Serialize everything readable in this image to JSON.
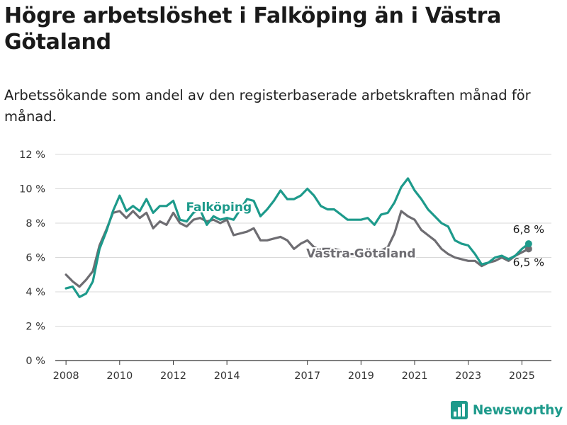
{
  "header": {
    "title": "Högre arbetslöshet i Falköping än i Västra Götaland",
    "subtitle": "Arbetssökande som andel av den registerbaserade arbetskraften månad för månad."
  },
  "brand": {
    "name": "Newsworthy",
    "icon": "bar-chart-logo-icon",
    "color": "#1d9a8b"
  },
  "chart_data": {
    "type": "line",
    "title": "Högre arbetslöshet i Falköping än i Västra Götaland",
    "subtitle": "Arbetssökande som andel av den registerbaserade arbetskraften månad för månad.",
    "xlabel": "",
    "ylabel": "",
    "xlim": [
      2007.6,
      2026.1
    ],
    "ylim": [
      0,
      12
    ],
    "yticks": [
      0,
      2,
      4,
      6,
      8,
      10,
      12
    ],
    "ytick_labels": [
      "0 %",
      "2 %",
      "4 %",
      "6 %",
      "8 %",
      "10 %",
      "12 %"
    ],
    "xticks": [
      2008,
      2010,
      2012,
      2014,
      2017,
      2019,
      2021,
      2023,
      2025
    ],
    "xtick_labels": [
      "2008",
      "2010",
      "2012",
      "2014",
      "2017",
      "2019",
      "2021",
      "2023",
      "2025"
    ],
    "grid": true,
    "legend": "inline labels",
    "series": [
      {
        "name": "Falköping",
        "color": "#1d9a8b",
        "end_label": "6,8 %",
        "x": [
          2008.0,
          2008.25,
          2008.5,
          2008.75,
          2009.0,
          2009.25,
          2009.5,
          2009.75,
          2010.0,
          2010.25,
          2010.5,
          2010.75,
          2011.0,
          2011.25,
          2011.5,
          2011.75,
          2012.0,
          2012.25,
          2012.5,
          2012.75,
          2013.0,
          2013.25,
          2013.5,
          2013.75,
          2014.0,
          2014.25,
          2014.5,
          2014.75,
          2015.0,
          2015.25,
          2015.5,
          2015.75,
          2016.0,
          2016.25,
          2016.5,
          2016.75,
          2017.0,
          2017.25,
          2017.5,
          2017.75,
          2018.0,
          2018.25,
          2018.5,
          2018.75,
          2019.0,
          2019.25,
          2019.5,
          2019.75,
          2020.0,
          2020.25,
          2020.5,
          2020.75,
          2021.0,
          2021.25,
          2021.5,
          2021.75,
          2022.0,
          2022.25,
          2022.5,
          2022.75,
          2023.0,
          2023.25,
          2023.5,
          2023.75,
          2024.0,
          2024.25,
          2024.5,
          2024.75,
          2025.0,
          2025.25
        ],
        "y": [
          4.2,
          4.3,
          3.7,
          3.9,
          4.6,
          6.5,
          7.5,
          8.7,
          9.6,
          8.7,
          9.0,
          8.7,
          9.4,
          8.6,
          9.0,
          9.0,
          9.3,
          8.2,
          8.1,
          8.6,
          8.8,
          7.9,
          8.4,
          8.2,
          8.3,
          8.2,
          8.8,
          9.4,
          9.3,
          8.4,
          8.8,
          9.3,
          9.9,
          9.4,
          9.4,
          9.6,
          10.0,
          9.6,
          9.0,
          8.8,
          8.8,
          8.5,
          8.2,
          8.2,
          8.2,
          8.3,
          7.9,
          8.5,
          8.6,
          9.2,
          10.1,
          10.6,
          9.9,
          9.4,
          8.8,
          8.4,
          8.0,
          7.8,
          7.0,
          6.8,
          6.7,
          6.2,
          5.6,
          5.7,
          6.0,
          6.1,
          5.9,
          6.1,
          6.5,
          6.8
        ]
      },
      {
        "name": "Västra Götaland",
        "color": "#6e6d72",
        "end_label": "6,5 %",
        "x": [
          2008.0,
          2008.25,
          2008.5,
          2008.75,
          2009.0,
          2009.25,
          2009.5,
          2009.75,
          2010.0,
          2010.25,
          2010.5,
          2010.75,
          2011.0,
          2011.25,
          2011.5,
          2011.75,
          2012.0,
          2012.25,
          2012.5,
          2012.75,
          2013.0,
          2013.25,
          2013.5,
          2013.75,
          2014.0,
          2014.25,
          2014.5,
          2014.75,
          2015.0,
          2015.25,
          2015.5,
          2015.75,
          2016.0,
          2016.25,
          2016.5,
          2016.75,
          2017.0,
          2017.25,
          2017.5,
          2017.75,
          2018.0,
          2018.25,
          2018.5,
          2018.75,
          2019.0,
          2019.25,
          2019.5,
          2019.75,
          2020.0,
          2020.25,
          2020.5,
          2020.75,
          2021.0,
          2021.25,
          2021.5,
          2021.75,
          2022.0,
          2022.25,
          2022.5,
          2022.75,
          2023.0,
          2023.25,
          2023.5,
          2023.75,
          2024.0,
          2024.25,
          2024.5,
          2024.75,
          2025.0,
          2025.25
        ],
        "y": [
          5.0,
          4.6,
          4.3,
          4.7,
          5.2,
          6.7,
          7.6,
          8.6,
          8.7,
          8.3,
          8.7,
          8.3,
          8.6,
          7.7,
          8.1,
          7.9,
          8.6,
          8.0,
          7.8,
          8.2,
          8.3,
          8.1,
          8.2,
          8.0,
          8.2,
          7.3,
          7.4,
          7.5,
          7.7,
          7.0,
          7.0,
          7.1,
          7.2,
          7.0,
          6.5,
          6.8,
          7.0,
          6.6,
          6.5,
          6.5,
          6.5,
          6.4,
          6.2,
          6.2,
          6.2,
          6.1,
          6.2,
          6.4,
          6.6,
          7.4,
          8.7,
          8.4,
          8.2,
          7.6,
          7.3,
          7.0,
          6.5,
          6.2,
          6.0,
          5.9,
          5.8,
          5.8,
          5.5,
          5.7,
          5.8,
          6.0,
          5.8,
          6.1,
          6.3,
          6.5
        ]
      }
    ],
    "series_labels": [
      {
        "series": "Falköping",
        "text": "Falköping",
        "x": 2013.7,
        "y": 8.7
      },
      {
        "series": "Västra Götaland",
        "text": "Västra Götaland",
        "x": 2019.0,
        "y": 6.0
      }
    ]
  }
}
